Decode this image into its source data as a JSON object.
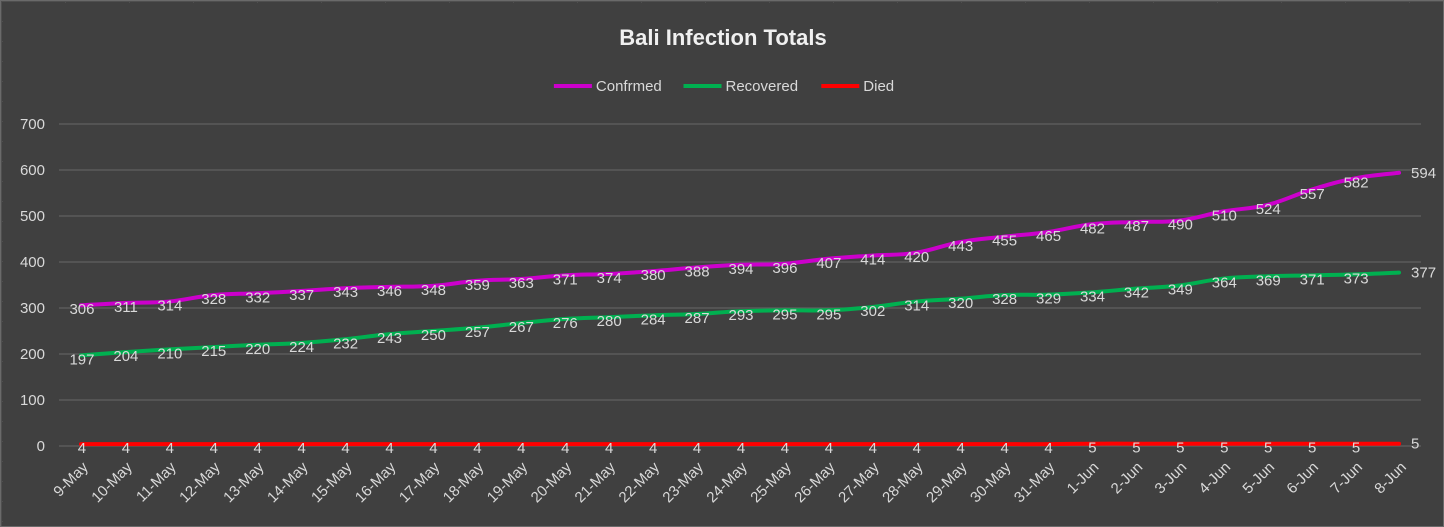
{
  "chart_data": {
    "type": "line",
    "title": "Bali Infection Totals",
    "xlabel": "",
    "ylabel": "",
    "ylim": [
      0,
      700
    ],
    "yticks": [
      "0",
      "100",
      "200",
      "300",
      "400",
      "500",
      "600",
      "700"
    ],
    "grid": true,
    "legend_position": "top",
    "categories": [
      "9-May",
      "10-May",
      "11-May",
      "12-May",
      "13-May",
      "14-May",
      "15-May",
      "16-May",
      "17-May",
      "18-May",
      "19-May",
      "20-May",
      "21-May",
      "22-May",
      "23-May",
      "24-May",
      "25-May",
      "26-May",
      "27-May",
      "28-May",
      "29-May",
      "30-May",
      "31-May",
      "1-Jun",
      "2-Jun",
      "3-Jun",
      "4-Jun",
      "5-Jun",
      "6-Jun",
      "7-Jun",
      "8-Jun"
    ],
    "series": [
      {
        "name": "Confrmed",
        "color": "#cc00cc",
        "values": [
          306,
          311,
          314,
          328,
          332,
          337,
          343,
          346,
          348,
          359,
          363,
          371,
          374,
          380,
          388,
          394,
          396,
          407,
          414,
          420,
          443,
          455,
          465,
          482,
          487,
          490,
          510,
          524,
          557,
          582,
          594
        ]
      },
      {
        "name": "Recovered",
        "color": "#00b050",
        "values": [
          197,
          204,
          210,
          215,
          220,
          224,
          232,
          243,
          250,
          257,
          267,
          276,
          280,
          284,
          287,
          293,
          295,
          295,
          302,
          314,
          320,
          328,
          329,
          334,
          342,
          349,
          364,
          369,
          371,
          373,
          377
        ]
      },
      {
        "name": "Died",
        "color": "#ff0000",
        "values": [
          4,
          4,
          4,
          4,
          4,
          4,
          4,
          4,
          4,
          4,
          4,
          4,
          4,
          4,
          4,
          4,
          4,
          4,
          4,
          4,
          4,
          4,
          4,
          5,
          5,
          5,
          5,
          5,
          5,
          5,
          5
        ]
      }
    ]
  }
}
